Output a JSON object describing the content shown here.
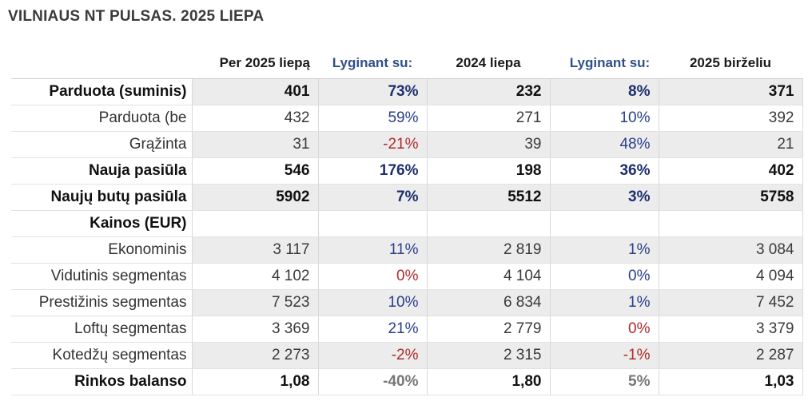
{
  "title": "VILNIAUS NT PULSAS. 2025 LIEPA",
  "headers": [
    "",
    "Per 2025 liepą",
    "Lyginant su:",
    "2024 liepa",
    "Lyginant su:",
    "2025 birželiu"
  ],
  "colors": {
    "positive": "#2a3f8a",
    "negative": "#b02a2a",
    "neutral": "#777777",
    "header_accent": "#2f4f86",
    "shade": "#ececec"
  },
  "rows": [
    {
      "label": "Parduota (suminis)",
      "bold": true,
      "shade": true,
      "cur": "401",
      "yoy": "73%",
      "yoy_tone": "pos",
      "prev_year": "232",
      "mom": "8%",
      "mom_tone": "pos",
      "prev_month": "371"
    },
    {
      "label": "Parduota (be",
      "bold": false,
      "shade": false,
      "cur": "432",
      "yoy": "59%",
      "yoy_tone": "pos",
      "prev_year": "271",
      "mom": "10%",
      "mom_tone": "pos",
      "prev_month": "392"
    },
    {
      "label": "Grąžinta",
      "bold": false,
      "shade": true,
      "cur": "31",
      "yoy": "-21%",
      "yoy_tone": "neg",
      "prev_year": "39",
      "mom": "48%",
      "mom_tone": "pos",
      "prev_month": "21"
    },
    {
      "label": "Nauja pasiūla",
      "bold": true,
      "shade": false,
      "cur": "546",
      "yoy": "176%",
      "yoy_tone": "pos",
      "prev_year": "198",
      "mom": "36%",
      "mom_tone": "pos",
      "prev_month": "402"
    },
    {
      "label": "Naujų butų pasiūla",
      "bold": true,
      "shade": true,
      "cur": "5902",
      "yoy": "7%",
      "yoy_tone": "pos",
      "prev_year": "5512",
      "mom": "3%",
      "mom_tone": "pos",
      "prev_month": "5758"
    },
    {
      "label": "Kainos (EUR)",
      "bold": true,
      "shade": false,
      "cur": "",
      "yoy": "",
      "yoy_tone": "pos",
      "prev_year": "",
      "mom": "",
      "mom_tone": "pos",
      "prev_month": ""
    },
    {
      "label": "Ekonominis",
      "bold": false,
      "shade": true,
      "cur": "3 117",
      "yoy": "11%",
      "yoy_tone": "pos",
      "prev_year": "2 819",
      "mom": "1%",
      "mom_tone": "pos",
      "prev_month": "3 084"
    },
    {
      "label": "Vidutinis segmentas",
      "bold": false,
      "shade": false,
      "cur": "4 102",
      "yoy": "0%",
      "yoy_tone": "neg",
      "prev_year": "4 104",
      "mom": "0%",
      "mom_tone": "pos",
      "prev_month": "4 094"
    },
    {
      "label": "Prestižinis segmentas",
      "bold": false,
      "shade": true,
      "cur": "7 523",
      "yoy": "10%",
      "yoy_tone": "pos",
      "prev_year": "6 834",
      "mom": "1%",
      "mom_tone": "pos",
      "prev_month": "7 452"
    },
    {
      "label": "Loftų segmentas",
      "bold": false,
      "shade": false,
      "cur": "3 369",
      "yoy": "21%",
      "yoy_tone": "pos",
      "prev_year": "2 779",
      "mom": "0%",
      "mom_tone": "neg",
      "prev_month": "3 379"
    },
    {
      "label": "Kotedžų segmentas",
      "bold": false,
      "shade": true,
      "cur": "2 273",
      "yoy": "-2%",
      "yoy_tone": "neg",
      "prev_year": "2 315",
      "mom": "-1%",
      "mom_tone": "neg",
      "prev_month": "2 287"
    },
    {
      "label": "Rinkos balanso",
      "bold": true,
      "shade": false,
      "cur": "1,08",
      "yoy": "-40%",
      "yoy_tone": "neu",
      "prev_year": "1,80",
      "mom": "5%",
      "mom_tone": "neu",
      "prev_month": "1,03"
    }
  ]
}
